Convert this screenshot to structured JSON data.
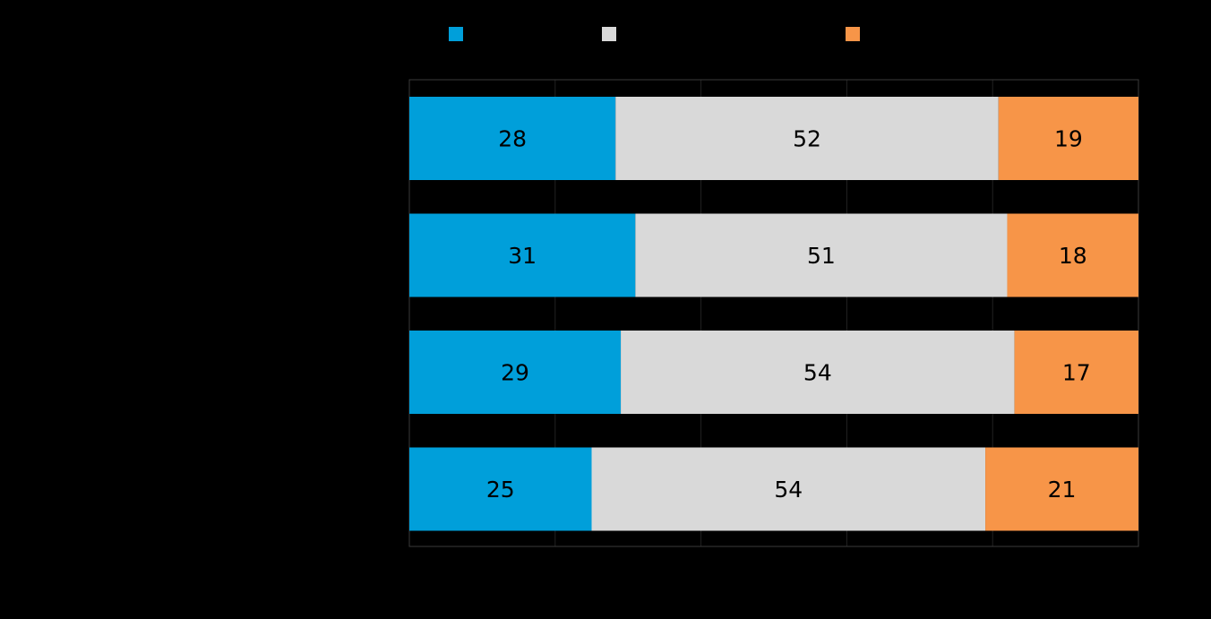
{
  "chart_data": {
    "type": "bar",
    "orientation": "horizontal",
    "stacked": true,
    "title": "",
    "xlabel": "",
    "ylabel": "",
    "xlim": [
      0,
      100
    ],
    "grid": true,
    "legend_position": "top",
    "categories": [
      "",
      "",
      "",
      ""
    ],
    "series": [
      {
        "name": "",
        "color": "#009fda",
        "values": [
          28,
          31,
          29,
          25
        ]
      },
      {
        "name": "",
        "color": "#d9d9d9",
        "values": [
          52,
          51,
          54,
          54
        ]
      },
      {
        "name": "",
        "color": "#f79548",
        "values": [
          19,
          18,
          17,
          21
        ]
      }
    ],
    "colors": {
      "background": "#000000",
      "grid": "#222222",
      "frame": "#3a3a3a",
      "label_text": "#000000"
    }
  }
}
